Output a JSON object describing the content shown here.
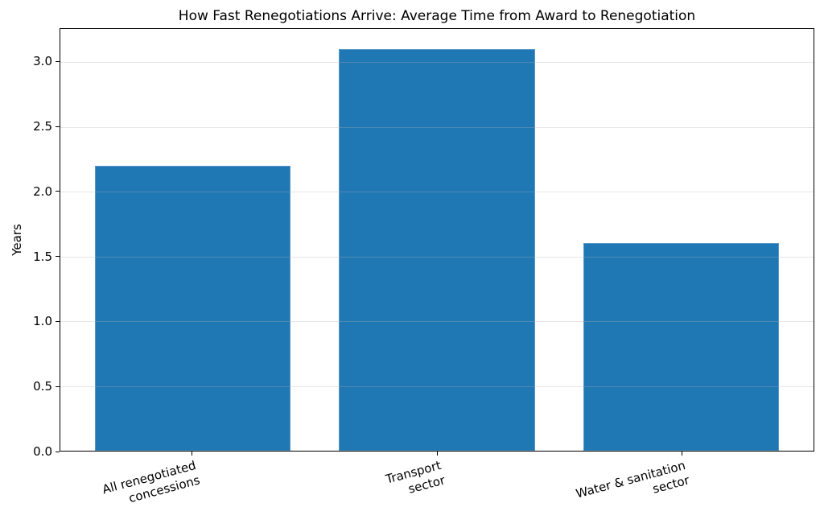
{
  "chart_data": {
    "type": "bar",
    "title": "How Fast Renegotiations Arrive: Average Time from Award to Renegotiation",
    "xlabel": "",
    "ylabel": "Years",
    "categories": [
      [
        "All renegotiated",
        "concessions"
      ],
      [
        "Transport",
        "sector"
      ],
      [
        "Water & sanitation",
        "sector"
      ]
    ],
    "values": [
      2.2,
      3.1,
      1.6
    ],
    "ytick_labels": [
      "0.0",
      "0.5",
      "1.0",
      "1.5",
      "2.0",
      "2.5",
      "3.0"
    ],
    "ytick_values": [
      0.0,
      0.5,
      1.0,
      1.5,
      2.0,
      2.5,
      3.0
    ],
    "ylim": [
      0,
      3.255
    ],
    "xlim": [
      -0.54,
      2.54
    ],
    "bar_width": 0.8,
    "bar_color": "#1f77b4",
    "grid": "horizontal gridlines at y ticks, light gray, drawn above bars",
    "legend_position": "none",
    "x_label_rotation_deg": 15
  }
}
